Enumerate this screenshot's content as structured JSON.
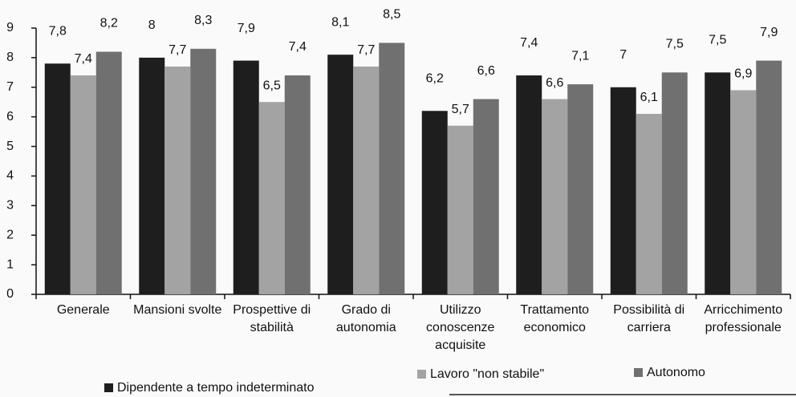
{
  "chart_data": {
    "type": "bar",
    "categories": [
      "Generale",
      "Mansioni svolte",
      "Prospettive di\nstabilità",
      "Grado di\nautonomia",
      "Utilizzo\nconoscenze\nacquisite",
      "Trattamento\neconomico",
      "Possibilità di\ncarriera",
      "Arricchimento\nprofessionale"
    ],
    "series": [
      {
        "name": "Dipendente a tempo indeterminato",
        "color": "#1e1e1e",
        "values": [
          7.8,
          8,
          7.9,
          8.1,
          6.2,
          7.4,
          7,
          7.5
        ],
        "value_labels": [
          "7,8",
          "8",
          "7,9",
          "8,1",
          "6,2",
          "7,4",
          "7",
          "7,5"
        ]
      },
      {
        "name": "Lavoro \"non stabile\"",
        "color": "#a3a3a3",
        "values": [
          7.4,
          7.7,
          6.5,
          7.7,
          5.7,
          6.6,
          6.1,
          6.9
        ],
        "value_labels": [
          "7,4",
          "7,7",
          "6,5",
          "7,7",
          "5,7",
          "6,6",
          "6,1",
          "6,9"
        ]
      },
      {
        "name": "Autonomo",
        "color": "#707070",
        "values": [
          8.2,
          8.3,
          7.4,
          8.5,
          6.6,
          7.1,
          7.5,
          7.9
        ],
        "value_labels": [
          "8,2",
          "8,3",
          "7,4",
          "8,5",
          "6,6",
          "7,1",
          "7,5",
          "7,9"
        ]
      }
    ],
    "ylim": [
      0,
      9
    ],
    "yticks": [
      0,
      1,
      2,
      3,
      4,
      5,
      6,
      7,
      8,
      9
    ],
    "grid": false,
    "legend": "bottom"
  }
}
